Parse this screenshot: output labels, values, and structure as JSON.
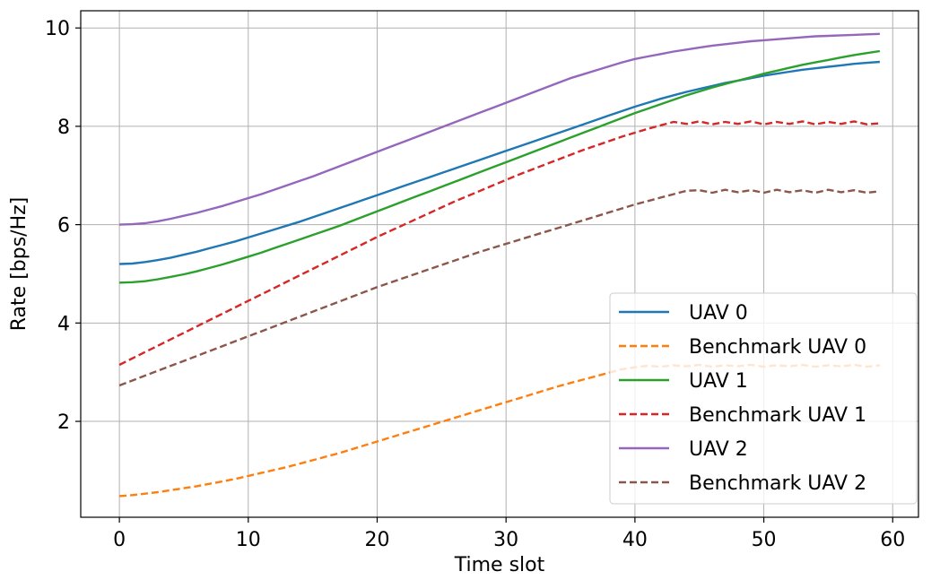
{
  "chart_data": {
    "type": "line",
    "title": "",
    "xlabel": "Time slot",
    "ylabel": "Rate [bps/Hz]",
    "xlim": [
      -3,
      62
    ],
    "ylim": [
      0.05,
      10.35
    ],
    "xticks": [
      0,
      10,
      20,
      30,
      40,
      50,
      60
    ],
    "yticks": [
      2,
      4,
      6,
      8,
      10
    ],
    "grid": true,
    "legend_position": "lower-right",
    "x": [
      0,
      1,
      2,
      3,
      4,
      5,
      6,
      7,
      8,
      9,
      10,
      11,
      12,
      13,
      14,
      15,
      16,
      17,
      18,
      19,
      20,
      21,
      22,
      23,
      24,
      25,
      26,
      27,
      28,
      29,
      30,
      31,
      32,
      33,
      34,
      35,
      36,
      37,
      38,
      39,
      40,
      41,
      42,
      43,
      44,
      45,
      46,
      47,
      48,
      49,
      50,
      51,
      52,
      53,
      54,
      55,
      56,
      57,
      58,
      59
    ],
    "series": [
      {
        "name": "UAV 0",
        "color": "#1f77b4",
        "style": "solid",
        "values": [
          5.2,
          5.21,
          5.24,
          5.28,
          5.33,
          5.39,
          5.45,
          5.52,
          5.59,
          5.66,
          5.74,
          5.82,
          5.9,
          5.98,
          6.06,
          6.15,
          6.24,
          6.33,
          6.42,
          6.51,
          6.6,
          6.69,
          6.78,
          6.87,
          6.96,
          7.05,
          7.14,
          7.23,
          7.32,
          7.41,
          7.5,
          7.59,
          7.68,
          7.77,
          7.86,
          7.95,
          8.04,
          8.13,
          8.22,
          8.31,
          8.4,
          8.48,
          8.56,
          8.63,
          8.7,
          8.76,
          8.82,
          8.88,
          8.93,
          8.98,
          9.03,
          9.07,
          9.11,
          9.15,
          9.18,
          9.21,
          9.24,
          9.27,
          9.29,
          9.31
        ]
      },
      {
        "name": "Benchmark UAV 0",
        "color": "#ff7f0e",
        "style": "dashed",
        "values": [
          0.48,
          0.5,
          0.53,
          0.56,
          0.6,
          0.64,
          0.68,
          0.73,
          0.78,
          0.83,
          0.89,
          0.95,
          1.01,
          1.07,
          1.14,
          1.21,
          1.28,
          1.35,
          1.43,
          1.51,
          1.59,
          1.67,
          1.75,
          1.83,
          1.91,
          1.99,
          2.07,
          2.15,
          2.23,
          2.31,
          2.39,
          2.47,
          2.55,
          2.63,
          2.71,
          2.78,
          2.85,
          2.92,
          2.99,
          3.06,
          3.1,
          3.13,
          3.11,
          3.14,
          3.12,
          3.15,
          3.11,
          3.14,
          3.12,
          3.15,
          3.11,
          3.14,
          3.12,
          3.15,
          3.11,
          3.14,
          3.12,
          3.15,
          3.11,
          3.14
        ]
      },
      {
        "name": "UAV 1",
        "color": "#2ca02c",
        "style": "solid",
        "values": [
          4.82,
          4.83,
          4.85,
          4.89,
          4.94,
          4.99,
          5.05,
          5.12,
          5.19,
          5.27,
          5.35,
          5.43,
          5.52,
          5.61,
          5.7,
          5.79,
          5.88,
          5.97,
          6.07,
          6.17,
          6.27,
          6.37,
          6.47,
          6.57,
          6.67,
          6.77,
          6.87,
          6.97,
          7.07,
          7.17,
          7.27,
          7.37,
          7.47,
          7.57,
          7.67,
          7.77,
          7.87,
          7.97,
          8.07,
          8.17,
          8.27,
          8.36,
          8.45,
          8.54,
          8.63,
          8.71,
          8.79,
          8.86,
          8.93,
          9.0,
          9.07,
          9.13,
          9.19,
          9.25,
          9.3,
          9.35,
          9.4,
          9.45,
          9.49,
          9.53
        ]
      },
      {
        "name": "Benchmark UAV 1",
        "color": "#d62728",
        "style": "dashed",
        "values": [
          3.15,
          3.28,
          3.41,
          3.54,
          3.67,
          3.8,
          3.93,
          4.06,
          4.19,
          4.32,
          4.45,
          4.58,
          4.71,
          4.84,
          4.97,
          5.1,
          5.23,
          5.36,
          5.49,
          5.62,
          5.75,
          5.87,
          5.99,
          6.11,
          6.23,
          6.35,
          6.47,
          6.58,
          6.69,
          6.8,
          6.91,
          7.02,
          7.12,
          7.22,
          7.32,
          7.42,
          7.52,
          7.61,
          7.7,
          7.79,
          7.87,
          7.95,
          8.02,
          8.09,
          8.05,
          8.1,
          8.04,
          8.09,
          8.05,
          8.1,
          8.04,
          8.09,
          8.05,
          8.1,
          8.04,
          8.09,
          8.05,
          8.1,
          8.04,
          8.06
        ]
      },
      {
        "name": "UAV 2",
        "color": "#9467bd",
        "style": "solid",
        "values": [
          6.0,
          6.01,
          6.03,
          6.07,
          6.12,
          6.18,
          6.24,
          6.31,
          6.38,
          6.46,
          6.54,
          6.62,
          6.71,
          6.8,
          6.89,
          6.98,
          7.08,
          7.18,
          7.28,
          7.38,
          7.48,
          7.58,
          7.68,
          7.78,
          7.88,
          7.98,
          8.08,
          8.18,
          8.28,
          8.38,
          8.48,
          8.58,
          8.68,
          8.78,
          8.88,
          8.98,
          9.06,
          9.14,
          9.22,
          9.3,
          9.37,
          9.42,
          9.47,
          9.52,
          9.56,
          9.6,
          9.64,
          9.67,
          9.7,
          9.73,
          9.75,
          9.77,
          9.79,
          9.81,
          9.83,
          9.84,
          9.85,
          9.86,
          9.87,
          9.88
        ]
      },
      {
        "name": "Benchmark UAV 2",
        "color": "#8c564b",
        "style": "dashed",
        "values": [
          2.73,
          2.83,
          2.93,
          3.03,
          3.13,
          3.23,
          3.33,
          3.43,
          3.53,
          3.63,
          3.73,
          3.83,
          3.93,
          4.03,
          4.13,
          4.23,
          4.33,
          4.43,
          4.53,
          4.63,
          4.73,
          4.82,
          4.91,
          5.0,
          5.09,
          5.18,
          5.27,
          5.36,
          5.45,
          5.53,
          5.61,
          5.69,
          5.77,
          5.85,
          5.93,
          6.01,
          6.09,
          6.17,
          6.25,
          6.33,
          6.41,
          6.48,
          6.55,
          6.62,
          6.69,
          6.7,
          6.65,
          6.71,
          6.66,
          6.7,
          6.65,
          6.71,
          6.66,
          6.7,
          6.65,
          6.71,
          6.66,
          6.7,
          6.65,
          6.68
        ]
      }
    ]
  }
}
